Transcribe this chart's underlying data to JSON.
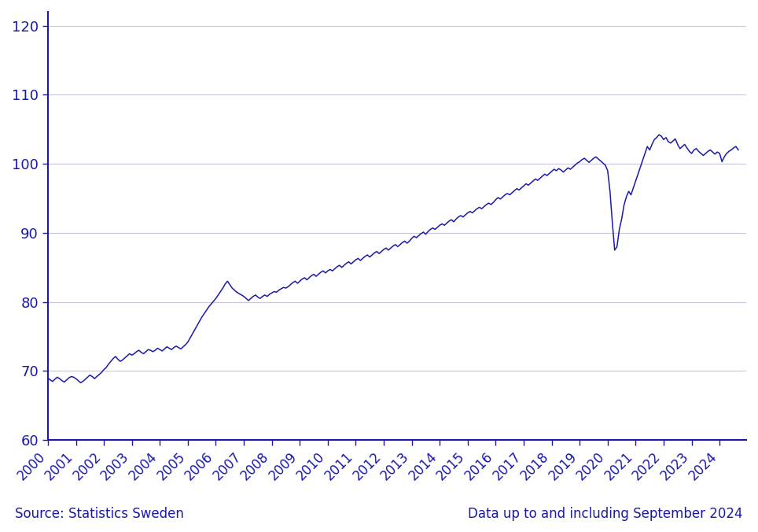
{
  "line_color": "#1a1aaa",
  "background_color": "#ffffff",
  "grid_color": "#c8c8e0",
  "text_color": "#1a1aaa",
  "ylabel_values": [
    60,
    70,
    80,
    90,
    100,
    110,
    120
  ],
  "ylim": [
    60,
    122
  ],
  "source_text": "Source: Statistics Sweden",
  "data_text": "Data up to and including September 2024",
  "xtick_years": [
    2000,
    2001,
    2002,
    2003,
    2004,
    2005,
    2006,
    2007,
    2008,
    2009,
    2010,
    2011,
    2012,
    2013,
    2014,
    2015,
    2016,
    2017,
    2018,
    2019,
    2020,
    2021,
    2022,
    2023,
    2024
  ],
  "series": [
    69.0,
    68.7,
    68.5,
    68.8,
    69.1,
    68.9,
    68.6,
    68.4,
    68.7,
    69.0,
    69.2,
    69.1,
    68.9,
    68.6,
    68.3,
    68.5,
    68.8,
    69.1,
    69.4,
    69.2,
    68.9,
    69.2,
    69.5,
    69.8,
    70.2,
    70.5,
    71.0,
    71.4,
    71.8,
    72.1,
    71.7,
    71.4,
    71.6,
    71.9,
    72.2,
    72.5,
    72.3,
    72.5,
    72.8,
    73.0,
    72.7,
    72.5,
    72.8,
    73.1,
    73.0,
    72.8,
    73.0,
    73.3,
    73.1,
    72.9,
    73.2,
    73.5,
    73.3,
    73.1,
    73.4,
    73.6,
    73.4,
    73.2,
    73.5,
    73.8,
    74.2,
    74.8,
    75.4,
    76.0,
    76.6,
    77.2,
    77.8,
    78.3,
    78.8,
    79.3,
    79.7,
    80.1,
    80.5,
    81.0,
    81.5,
    82.0,
    82.6,
    83.0,
    82.5,
    82.0,
    81.7,
    81.4,
    81.2,
    81.0,
    80.8,
    80.5,
    80.2,
    80.5,
    80.8,
    81.0,
    80.7,
    80.5,
    80.8,
    81.0,
    80.8,
    81.1,
    81.3,
    81.5,
    81.4,
    81.7,
    81.9,
    82.1,
    82.0,
    82.2,
    82.5,
    82.8,
    83.0,
    82.7,
    83.0,
    83.3,
    83.5,
    83.2,
    83.5,
    83.8,
    84.0,
    83.7,
    84.0,
    84.3,
    84.5,
    84.2,
    84.5,
    84.7,
    84.5,
    84.8,
    85.1,
    85.3,
    85.0,
    85.3,
    85.6,
    85.8,
    85.5,
    85.8,
    86.1,
    86.3,
    86.0,
    86.3,
    86.6,
    86.8,
    86.5,
    86.8,
    87.1,
    87.3,
    87.0,
    87.3,
    87.6,
    87.8,
    87.5,
    87.8,
    88.1,
    88.3,
    88.0,
    88.3,
    88.6,
    88.8,
    88.5,
    88.8,
    89.2,
    89.5,
    89.3,
    89.6,
    89.9,
    90.1,
    89.8,
    90.2,
    90.5,
    90.7,
    90.5,
    90.8,
    91.1,
    91.3,
    91.1,
    91.4,
    91.7,
    91.9,
    91.6,
    92.0,
    92.3,
    92.5,
    92.3,
    92.6,
    92.9,
    93.1,
    92.9,
    93.2,
    93.5,
    93.7,
    93.5,
    93.8,
    94.1,
    94.3,
    94.1,
    94.4,
    94.8,
    95.1,
    94.9,
    95.2,
    95.5,
    95.7,
    95.5,
    95.8,
    96.1,
    96.4,
    96.2,
    96.5,
    96.8,
    97.1,
    96.9,
    97.2,
    97.5,
    97.8,
    97.6,
    97.9,
    98.2,
    98.5,
    98.3,
    98.6,
    98.9,
    99.2,
    99.0,
    99.3,
    99.1,
    98.8,
    99.1,
    99.4,
    99.2,
    99.5,
    99.8,
    100.1,
    100.3,
    100.6,
    100.8,
    100.5,
    100.2,
    100.5,
    100.8,
    101.0,
    100.7,
    100.4,
    100.1,
    99.8,
    99.0,
    96.0,
    91.5,
    87.5,
    88.0,
    90.5,
    92.0,
    94.0,
    95.2,
    96.0,
    95.5,
    96.5,
    97.5,
    98.5,
    99.5,
    100.5,
    101.5,
    102.5,
    102.0,
    102.8,
    103.5,
    103.8,
    104.2,
    104.0,
    103.5,
    103.8,
    103.2,
    103.0,
    103.3,
    103.6,
    102.8,
    102.2,
    102.5,
    102.8,
    102.3,
    101.8,
    101.5,
    102.0,
    102.2,
    101.8,
    101.5,
    101.2,
    101.5,
    101.8,
    102.0,
    101.7,
    101.4,
    101.7,
    101.5,
    100.3,
    101.0,
    101.5,
    101.8,
    102.0,
    102.3,
    102.5,
    102.0
  ],
  "start_year": 2000,
  "start_month": 1
}
